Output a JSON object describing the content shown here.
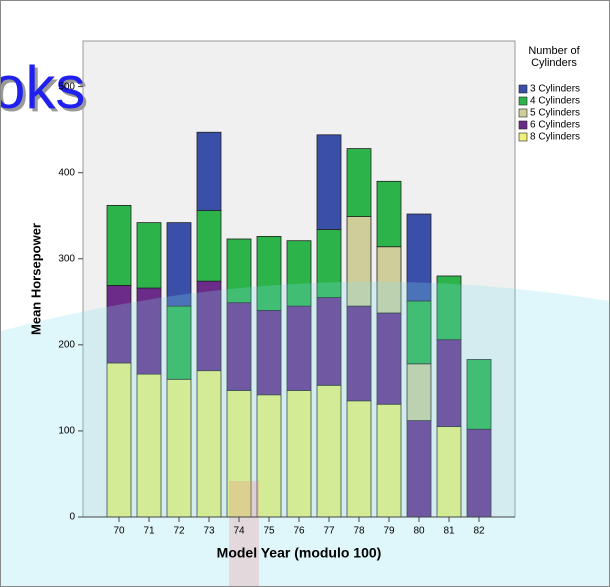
{
  "chart_data": {
    "type": "stacked_bar",
    "watermark": "oks",
    "ylabel": "Mean Horsepower",
    "xlabel": "Model Year (modulo 100)",
    "legend_title": "Number of Cylinders",
    "legend_position": "right",
    "categories": [
      "70",
      "71",
      "72",
      "73",
      "74",
      "75",
      "76",
      "77",
      "78",
      "79",
      "80",
      "81",
      "82"
    ],
    "series": [
      {
        "name": "3 Cylinders",
        "color": "#3a4fa8",
        "values": [
          null,
          null,
          97,
          91,
          null,
          null,
          null,
          110,
          null,
          null,
          101,
          null,
          null
        ]
      },
      {
        "name": "4 Cylinders",
        "color": "#2cb34a",
        "values": [
          93,
          76,
          85,
          82,
          74,
          86,
          76,
          79,
          79,
          76,
          73,
          74,
          81
        ]
      },
      {
        "name": "5 Cylinders",
        "color": "#cfcd9a",
        "values": [
          null,
          null,
          null,
          null,
          null,
          null,
          null,
          null,
          104,
          77,
          66,
          null,
          null
        ]
      },
      {
        "name": "6 Cylinders",
        "color": "#6b2b88",
        "values": [
          90,
          100,
          null,
          104,
          102,
          98,
          98,
          102,
          110,
          106,
          112,
          101,
          102
        ]
      },
      {
        "name": "8 Cylinders",
        "color": "#f0ef78",
        "values": [
          179,
          166,
          160,
          170,
          147,
          142,
          147,
          153,
          135,
          131,
          null,
          105,
          null
        ]
      }
    ],
    "ylim": [
      0,
      553
    ],
    "yticks": [
      0,
      100,
      200,
      300,
      400,
      500
    ]
  }
}
